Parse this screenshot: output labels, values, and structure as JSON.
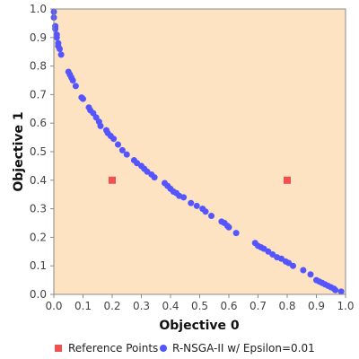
{
  "chart_data": {
    "type": "scatter",
    "title": "",
    "xlabel": "Objective 0",
    "ylabel": "Objective 1",
    "xlim": [
      0,
      1
    ],
    "ylim": [
      0,
      1
    ],
    "xticks": [
      "0.0",
      "0.1",
      "0.2",
      "0.3",
      "0.4",
      "0.5",
      "0.6",
      "0.7",
      "0.8",
      "0.9",
      "1.0"
    ],
    "yticks": [
      "0.0",
      "0.1",
      "0.2",
      "0.3",
      "0.4",
      "0.5",
      "0.6",
      "0.7",
      "0.8",
      "0.9",
      "1.0"
    ],
    "plot_background": "#fde3c2",
    "grid": false,
    "legend_position": "bottom",
    "series": [
      {
        "name": "Reference Points",
        "marker": "square",
        "color": "#f05050",
        "points": [
          [
            0.2,
            0.4
          ],
          [
            0.8,
            0.4
          ]
        ]
      },
      {
        "name": "R-NSGA-II w/ Epsilon=0.01",
        "marker": "circle",
        "color": "#5555ff",
        "points": [
          [
            0.0,
            0.99
          ],
          [
            0.0,
            0.97
          ],
          [
            0.005,
            0.94
          ],
          [
            0.005,
            0.93
          ],
          [
            0.01,
            0.91
          ],
          [
            0.01,
            0.9
          ],
          [
            0.015,
            0.88
          ],
          [
            0.015,
            0.87
          ],
          [
            0.02,
            0.86
          ],
          [
            0.025,
            0.84
          ],
          [
            0.05,
            0.78
          ],
          [
            0.055,
            0.77
          ],
          [
            0.06,
            0.76
          ],
          [
            0.065,
            0.75
          ],
          [
            0.075,
            0.73
          ],
          [
            0.095,
            0.69
          ],
          [
            0.1,
            0.685
          ],
          [
            0.12,
            0.655
          ],
          [
            0.125,
            0.645
          ],
          [
            0.135,
            0.635
          ],
          [
            0.145,
            0.62
          ],
          [
            0.155,
            0.605
          ],
          [
            0.16,
            0.59
          ],
          [
            0.18,
            0.575
          ],
          [
            0.185,
            0.565
          ],
          [
            0.195,
            0.555
          ],
          [
            0.205,
            0.545
          ],
          [
            0.22,
            0.525
          ],
          [
            0.235,
            0.505
          ],
          [
            0.25,
            0.49
          ],
          [
            0.275,
            0.47
          ],
          [
            0.285,
            0.46
          ],
          [
            0.3,
            0.45
          ],
          [
            0.31,
            0.44
          ],
          [
            0.32,
            0.43
          ],
          [
            0.335,
            0.42
          ],
          [
            0.345,
            0.41
          ],
          [
            0.38,
            0.39
          ],
          [
            0.39,
            0.38
          ],
          [
            0.4,
            0.37
          ],
          [
            0.41,
            0.36
          ],
          [
            0.42,
            0.355
          ],
          [
            0.43,
            0.345
          ],
          [
            0.445,
            0.34
          ],
          [
            0.47,
            0.32
          ],
          [
            0.49,
            0.31
          ],
          [
            0.51,
            0.3
          ],
          [
            0.52,
            0.29
          ],
          [
            0.54,
            0.275
          ],
          [
            0.575,
            0.255
          ],
          [
            0.585,
            0.25
          ],
          [
            0.595,
            0.24
          ],
          [
            0.6,
            0.235
          ],
          [
            0.625,
            0.215
          ],
          [
            0.69,
            0.18
          ],
          [
            0.7,
            0.17
          ],
          [
            0.71,
            0.165
          ],
          [
            0.72,
            0.16
          ],
          [
            0.735,
            0.15
          ],
          [
            0.75,
            0.14
          ],
          [
            0.765,
            0.13
          ],
          [
            0.78,
            0.125
          ],
          [
            0.795,
            0.115
          ],
          [
            0.805,
            0.11
          ],
          [
            0.82,
            0.1
          ],
          [
            0.855,
            0.085
          ],
          [
            0.88,
            0.07
          ],
          [
            0.9,
            0.05
          ],
          [
            0.91,
            0.045
          ],
          [
            0.92,
            0.04
          ],
          [
            0.93,
            0.035
          ],
          [
            0.94,
            0.03
          ],
          [
            0.95,
            0.025
          ],
          [
            0.96,
            0.02
          ],
          [
            0.965,
            0.015
          ],
          [
            0.985,
            0.01
          ]
        ]
      }
    ]
  }
}
